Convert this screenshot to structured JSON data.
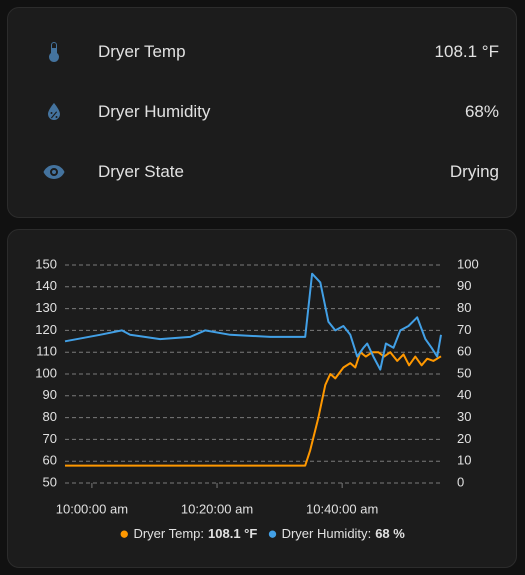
{
  "entities": [
    {
      "name": "Dryer Temp",
      "state": "108.1 °F"
    },
    {
      "name": "Dryer Humidity",
      "state": "68%"
    },
    {
      "name": "Dryer State",
      "state": "Drying"
    }
  ],
  "chart_data": {
    "type": "line",
    "xlim": [
      595.7,
      655.8
    ],
    "xticks": [
      {
        "value": 600,
        "label": "10:00:00 am"
      },
      {
        "value": 620,
        "label": "10:20:00 am"
      },
      {
        "value": 640,
        "label": "10:40:00 am"
      }
    ],
    "ylim": [
      50,
      150
    ],
    "yticks": [
      50,
      60,
      70,
      80,
      90,
      100,
      110,
      120,
      130,
      140,
      150
    ],
    "y2lim": [
      0,
      100
    ],
    "y2ticks": [
      0,
      10,
      20,
      30,
      40,
      50,
      60,
      70,
      80,
      90,
      100
    ],
    "grid": true,
    "legend_separator": ":",
    "series": [
      {
        "name": "Dryer Temp",
        "color": "#ff9800",
        "legend_value": "108.1 °F",
        "x": [
          595.7,
          634.1,
          634.9,
          636.2,
          637.3,
          638.1,
          638.9,
          640.2,
          641.3,
          642.1,
          642.9,
          643.8,
          644.8,
          645.8,
          646.7,
          647.7,
          648.8,
          649.8,
          650.7,
          651.7,
          652.7,
          653.6,
          654.6,
          655.8
        ],
        "values": [
          58,
          58,
          65,
          80,
          95,
          100,
          98,
          103,
          105,
          103,
          110,
          108,
          110,
          110,
          108,
          110,
          106,
          109,
          104,
          108,
          104,
          107,
          106,
          108.1
        ]
      },
      {
        "name": "Dryer Humidity",
        "color": "#42a0e6",
        "legend_value": "68 %",
        "axis": "y2",
        "x": [
          595.7,
          601.3,
          604.8,
          606.1,
          610.9,
          615.7,
          618.1,
          622.1,
          628.5,
          634.1,
          635.2,
          636.5,
          637.8,
          638.9,
          640.2,
          641.3,
          642.4,
          643.4,
          644.0,
          645.0,
          646.1,
          647.0,
          648.2,
          649.3,
          650.6,
          652.0,
          653.3,
          654.3,
          655.2,
          655.8
        ],
        "values": [
          65,
          68,
          70,
          68,
          66,
          67,
          70,
          68,
          67,
          67,
          96,
          92,
          74,
          70,
          72,
          68,
          58,
          62,
          64,
          58,
          52,
          64,
          62,
          70,
          72,
          76,
          66,
          62,
          58,
          68
        ]
      }
    ]
  }
}
